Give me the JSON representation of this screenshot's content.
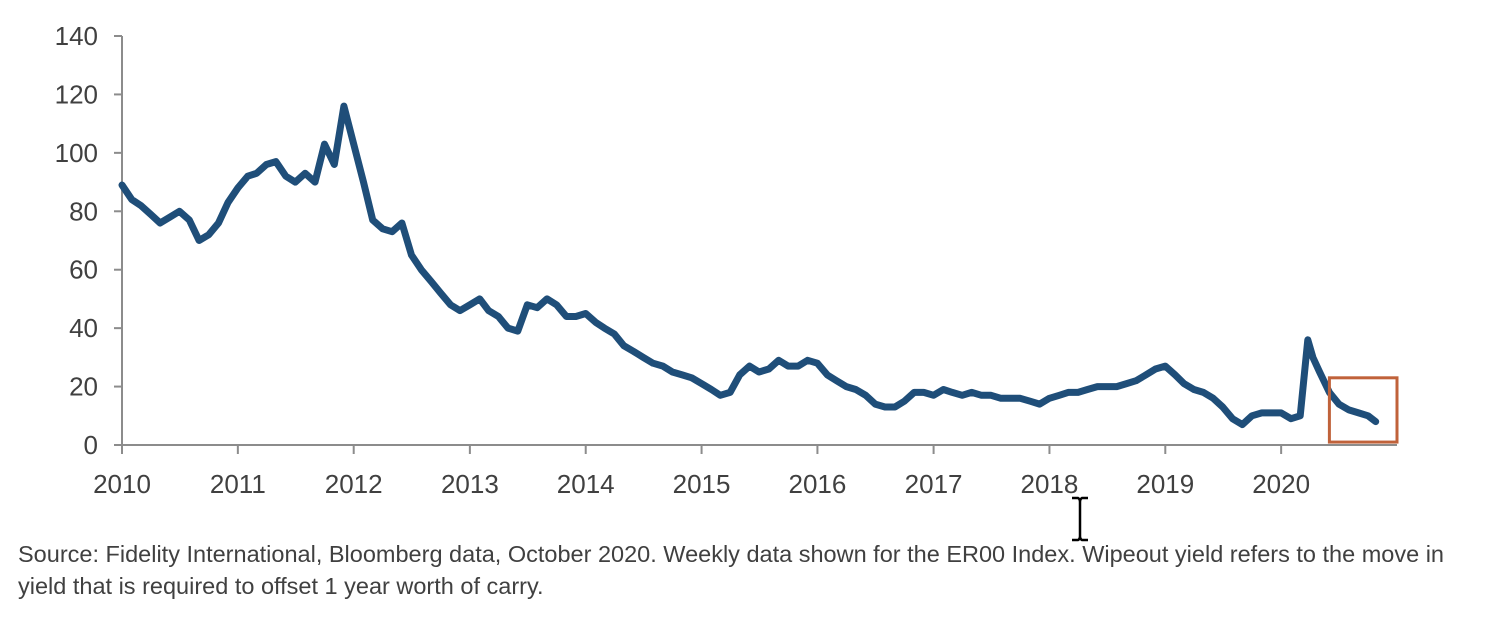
{
  "chart_data": {
    "type": "line",
    "title": "",
    "xlabel": "",
    "ylabel": "",
    "ylim": [
      0,
      140
    ],
    "xlim": [
      "2010-01-01",
      "2020-12-31"
    ],
    "yticks": [
      0,
      20,
      40,
      60,
      80,
      100,
      120,
      140
    ],
    "xtick_labels": [
      "2010",
      "2011",
      "2012",
      "2013",
      "2014",
      "2015",
      "2016",
      "2017",
      "2018",
      "2019",
      "2020"
    ],
    "grid": false,
    "legend": "none",
    "series": [
      {
        "color": "#1f4e79",
        "points": [
          [
            "2010-01-01",
            89
          ],
          [
            "2010-02-01",
            84
          ],
          [
            "2010-03-01",
            82
          ],
          [
            "2010-04-01",
            79
          ],
          [
            "2010-05-01",
            76
          ],
          [
            "2010-06-01",
            78
          ],
          [
            "2010-07-01",
            80
          ],
          [
            "2010-08-01",
            77
          ],
          [
            "2010-09-01",
            70
          ],
          [
            "2010-10-01",
            72
          ],
          [
            "2010-11-01",
            76
          ],
          [
            "2010-12-01",
            83
          ],
          [
            "2011-01-01",
            88
          ],
          [
            "2011-02-01",
            92
          ],
          [
            "2011-03-01",
            93
          ],
          [
            "2011-04-01",
            96
          ],
          [
            "2011-05-01",
            97
          ],
          [
            "2011-06-01",
            92
          ],
          [
            "2011-07-01",
            90
          ],
          [
            "2011-08-01",
            93
          ],
          [
            "2011-09-01",
            90
          ],
          [
            "2011-10-01",
            103
          ],
          [
            "2011-11-01",
            96
          ],
          [
            "2011-12-01",
            116
          ],
          [
            "2012-01-01",
            103
          ],
          [
            "2012-02-01",
            90
          ],
          [
            "2012-03-01",
            77
          ],
          [
            "2012-04-01",
            74
          ],
          [
            "2012-05-01",
            73
          ],
          [
            "2012-06-01",
            76
          ],
          [
            "2012-07-01",
            65
          ],
          [
            "2012-08-01",
            60
          ],
          [
            "2012-09-01",
            56
          ],
          [
            "2012-10-01",
            52
          ],
          [
            "2012-11-01",
            48
          ],
          [
            "2012-12-01",
            46
          ],
          [
            "2013-01-01",
            48
          ],
          [
            "2013-02-01",
            50
          ],
          [
            "2013-03-01",
            46
          ],
          [
            "2013-04-01",
            44
          ],
          [
            "2013-05-01",
            40
          ],
          [
            "2013-06-01",
            39
          ],
          [
            "2013-07-01",
            48
          ],
          [
            "2013-08-01",
            47
          ],
          [
            "2013-09-01",
            50
          ],
          [
            "2013-10-01",
            48
          ],
          [
            "2013-11-01",
            44
          ],
          [
            "2013-12-01",
            44
          ],
          [
            "2014-01-01",
            45
          ],
          [
            "2014-02-01",
            42
          ],
          [
            "2014-03-01",
            40
          ],
          [
            "2014-04-01",
            38
          ],
          [
            "2014-05-01",
            34
          ],
          [
            "2014-06-01",
            32
          ],
          [
            "2014-07-01",
            30
          ],
          [
            "2014-08-01",
            28
          ],
          [
            "2014-09-01",
            27
          ],
          [
            "2014-10-01",
            25
          ],
          [
            "2014-11-01",
            24
          ],
          [
            "2014-12-01",
            23
          ],
          [
            "2015-01-01",
            21
          ],
          [
            "2015-02-01",
            19
          ],
          [
            "2015-03-01",
            17
          ],
          [
            "2015-04-01",
            18
          ],
          [
            "2015-05-01",
            24
          ],
          [
            "2015-06-01",
            27
          ],
          [
            "2015-07-01",
            25
          ],
          [
            "2015-08-01",
            26
          ],
          [
            "2015-09-01",
            29
          ],
          [
            "2015-10-01",
            27
          ],
          [
            "2015-11-01",
            27
          ],
          [
            "2015-12-01",
            29
          ],
          [
            "2016-01-01",
            28
          ],
          [
            "2016-02-01",
            24
          ],
          [
            "2016-03-01",
            22
          ],
          [
            "2016-04-01",
            20
          ],
          [
            "2016-05-01",
            19
          ],
          [
            "2016-06-01",
            17
          ],
          [
            "2016-07-01",
            14
          ],
          [
            "2016-08-01",
            13
          ],
          [
            "2016-09-01",
            13
          ],
          [
            "2016-10-01",
            15
          ],
          [
            "2016-11-01",
            18
          ],
          [
            "2016-12-01",
            18
          ],
          [
            "2017-01-01",
            17
          ],
          [
            "2017-02-01",
            19
          ],
          [
            "2017-03-01",
            18
          ],
          [
            "2017-04-01",
            17
          ],
          [
            "2017-05-01",
            18
          ],
          [
            "2017-06-01",
            17
          ],
          [
            "2017-07-01",
            17
          ],
          [
            "2017-08-01",
            16
          ],
          [
            "2017-09-01",
            16
          ],
          [
            "2017-10-01",
            16
          ],
          [
            "2017-11-01",
            15
          ],
          [
            "2017-12-01",
            14
          ],
          [
            "2018-01-01",
            16
          ],
          [
            "2018-02-01",
            17
          ],
          [
            "2018-03-01",
            18
          ],
          [
            "2018-04-01",
            18
          ],
          [
            "2018-05-01",
            19
          ],
          [
            "2018-06-01",
            20
          ],
          [
            "2018-07-01",
            20
          ],
          [
            "2018-08-01",
            20
          ],
          [
            "2018-09-01",
            21
          ],
          [
            "2018-10-01",
            22
          ],
          [
            "2018-11-01",
            24
          ],
          [
            "2018-12-01",
            26
          ],
          [
            "2019-01-01",
            27
          ],
          [
            "2019-02-01",
            24
          ],
          [
            "2019-03-01",
            21
          ],
          [
            "2019-04-01",
            19
          ],
          [
            "2019-05-01",
            18
          ],
          [
            "2019-06-01",
            16
          ],
          [
            "2019-07-01",
            13
          ],
          [
            "2019-08-01",
            9
          ],
          [
            "2019-09-01",
            7
          ],
          [
            "2019-10-01",
            10
          ],
          [
            "2019-11-01",
            11
          ],
          [
            "2019-12-01",
            11
          ],
          [
            "2020-01-01",
            11
          ],
          [
            "2020-02-01",
            9
          ],
          [
            "2020-03-01",
            10
          ],
          [
            "2020-03-25",
            36
          ],
          [
            "2020-04-10",
            30
          ],
          [
            "2020-05-01",
            25
          ],
          [
            "2020-06-01",
            18
          ],
          [
            "2020-07-01",
            14
          ],
          [
            "2020-08-01",
            12
          ],
          [
            "2020-09-01",
            11
          ],
          [
            "2020-10-01",
            10
          ],
          [
            "2020-10-25",
            8
          ]
        ]
      }
    ],
    "highlight_box": {
      "x": [
        "2020-06-01",
        "2020-12-31"
      ],
      "y": [
        1,
        23
      ],
      "color": "#c0623a"
    }
  },
  "source_note": "Source: Fidelity International, Bloomberg data, October 2020. Weekly data shown for the ER00 Index. Wipeout yield refers to the move in yield that is required to offset 1 year worth of carry."
}
